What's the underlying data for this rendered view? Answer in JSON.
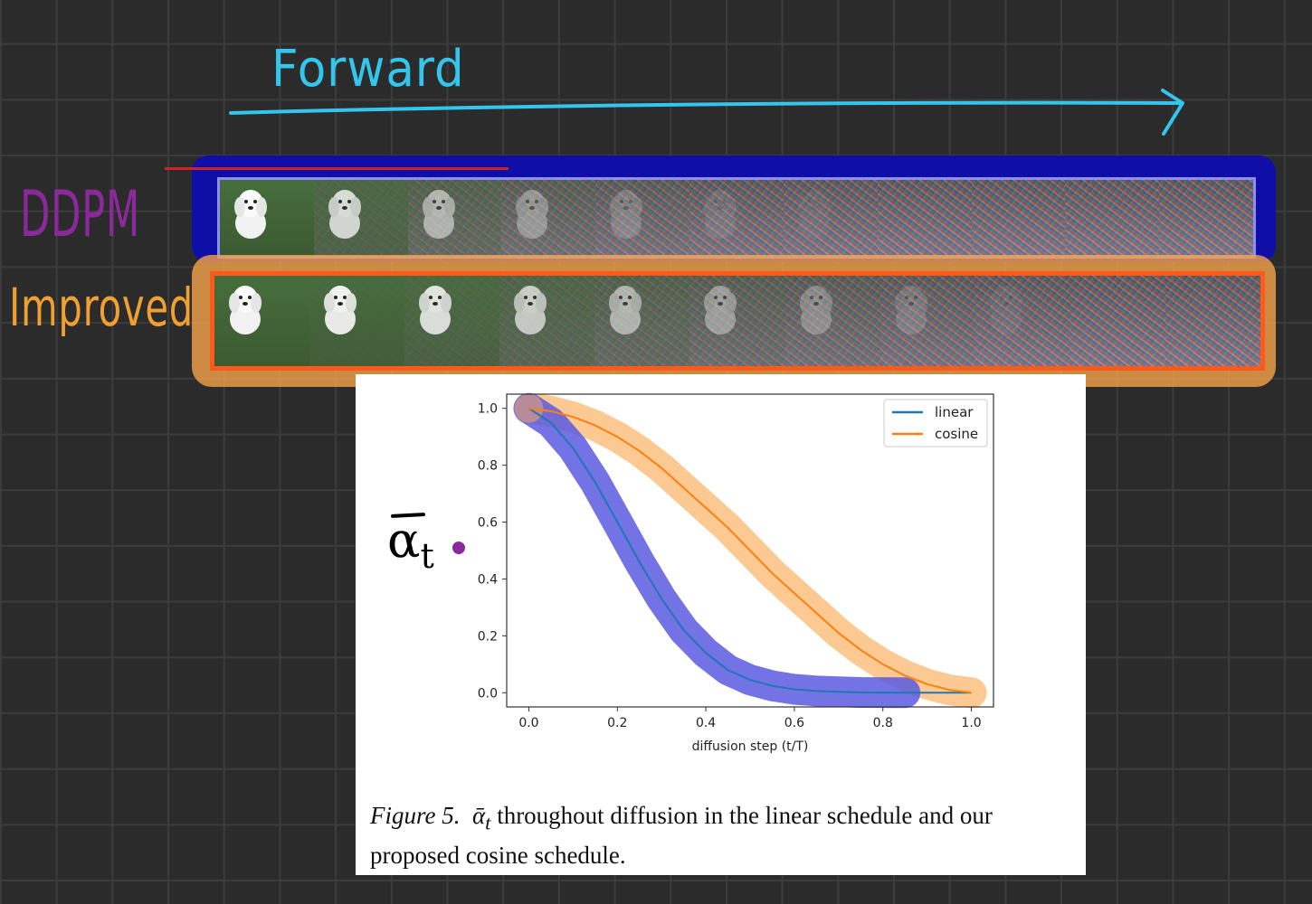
{
  "annotations": {
    "forward_label": "Forward",
    "ddpm_label": "DDPM",
    "improved_label": "Improved",
    "alpha_label": "α",
    "alpha_sub": "t"
  },
  "strips": {
    "frames_per_row": 11,
    "ddpm_dog_opacity": [
      1,
      0.8,
      0.55,
      0.35,
      0.2,
      0.1,
      0.05,
      0,
      0,
      0,
      0
    ],
    "improved_dog_opacity": [
      1,
      0.95,
      0.85,
      0.7,
      0.55,
      0.4,
      0.28,
      0.16,
      0.06,
      0,
      0
    ]
  },
  "colors": {
    "forward": "#33c6ec",
    "ddpm": "#8a2a9a",
    "improved": "#f0a030",
    "ddpm_highlight": "#0f0fa8",
    "improved_highlight": "#f5a24a",
    "linear_line": "#1f77b4",
    "cosine_line": "#ff7f0e",
    "linear_highlight": "#5b5be0",
    "cosine_highlight": "#fbbf80"
  },
  "chart_data": {
    "type": "line",
    "x_label": "diffusion step (t/T)",
    "xlim": [
      -0.05,
      1.05
    ],
    "ylim": [
      -0.05,
      1.05
    ],
    "x_ticks": [
      "0.0",
      "0.2",
      "0.4",
      "0.6",
      "0.8",
      "1.0"
    ],
    "x_tick_values": [
      0,
      0.2,
      0.4,
      0.6,
      0.8,
      1.0
    ],
    "y_ticks": [
      "0.0",
      "0.2",
      "0.4",
      "0.6",
      "0.8",
      "1.0"
    ],
    "y_tick_values": [
      0,
      0.2,
      0.4,
      0.6,
      0.8,
      1.0
    ],
    "legend_position": "top-right",
    "series": [
      {
        "name": "linear",
        "x": [
          0.0,
          0.05,
          0.1,
          0.15,
          0.2,
          0.25,
          0.3,
          0.35,
          0.4,
          0.45,
          0.5,
          0.55,
          0.6,
          0.65,
          0.7,
          0.75,
          0.8,
          0.85,
          0.9,
          0.95,
          1.0
        ],
        "y": [
          1.0,
          0.95,
          0.86,
          0.74,
          0.6,
          0.46,
          0.33,
          0.22,
          0.14,
          0.08,
          0.045,
          0.024,
          0.012,
          0.006,
          0.003,
          0.001,
          0.0005,
          0.0002,
          0.0,
          0.0,
          0.0
        ]
      },
      {
        "name": "cosine",
        "x": [
          0.0,
          0.05,
          0.1,
          0.15,
          0.2,
          0.25,
          0.3,
          0.35,
          0.4,
          0.45,
          0.5,
          0.55,
          0.6,
          0.65,
          0.7,
          0.75,
          0.8,
          0.85,
          0.9,
          0.95,
          1.0
        ],
        "y": [
          1.0,
          0.99,
          0.97,
          0.94,
          0.9,
          0.85,
          0.79,
          0.72,
          0.65,
          0.58,
          0.5,
          0.42,
          0.35,
          0.28,
          0.21,
          0.15,
          0.1,
          0.06,
          0.03,
          0.01,
          0.0
        ]
      }
    ]
  },
  "caption": {
    "figure": "Figure 5.",
    "symbol": "ᾱ",
    "symbol_sub": "t",
    "text": " throughout diffusion in the linear schedule and our proposed cosine schedule."
  }
}
